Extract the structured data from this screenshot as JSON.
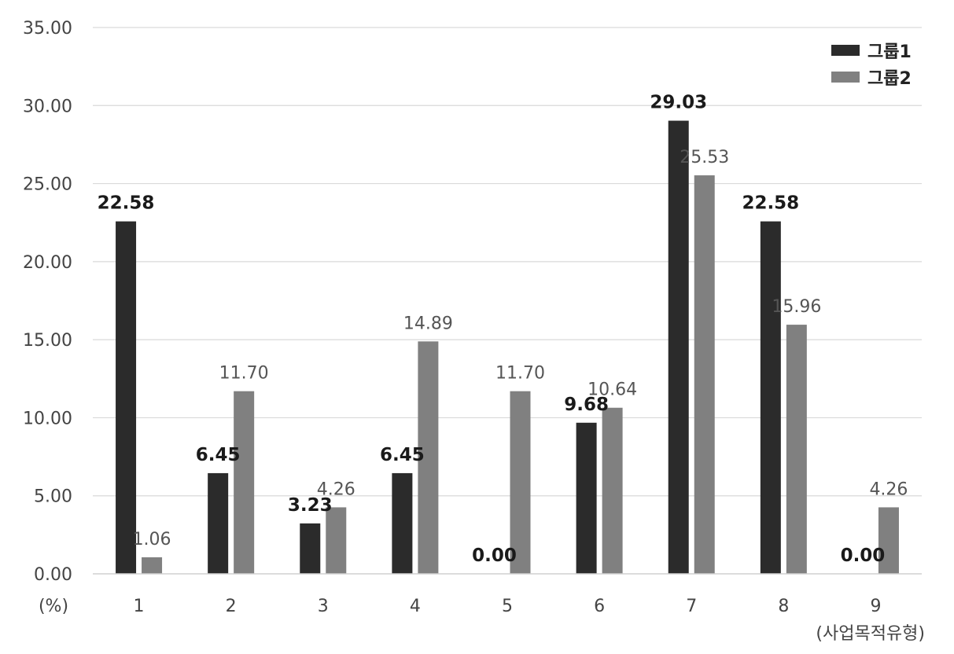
{
  "chart_data": {
    "type": "bar",
    "categories": [
      "1",
      "2",
      "3",
      "4",
      "5",
      "6",
      "7",
      "8",
      "9"
    ],
    "series": [
      {
        "name": "그룹1",
        "values": [
          22.58,
          6.45,
          3.23,
          6.45,
          0.0,
          9.68,
          29.03,
          22.58,
          0.0
        ],
        "color": "#2b2b2b"
      },
      {
        "name": "그룹2",
        "values": [
          1.06,
          11.7,
          4.26,
          14.89,
          11.7,
          10.64,
          25.53,
          15.96,
          4.26
        ],
        "color": "#808080"
      }
    ],
    "data_labels": [
      [
        "22.58",
        "6.45",
        "3.23",
        "6.45",
        "0.00",
        "9.68",
        "29.03",
        "22.58",
        "0.00"
      ],
      [
        "1.06",
        "11.70",
        "4.26",
        "14.89",
        "11.70",
        "10.64",
        "25.53",
        "15.96",
        "4.26"
      ]
    ],
    "yticks": [
      "0.00",
      "5.00",
      "10.00",
      "15.00",
      "20.00",
      "25.00",
      "30.00",
      "35.00"
    ],
    "ylim": [
      0,
      35
    ],
    "ylabel": "(%)",
    "xlabel": "(사업목적유형)",
    "grid": true,
    "legend_position": "top-right"
  }
}
